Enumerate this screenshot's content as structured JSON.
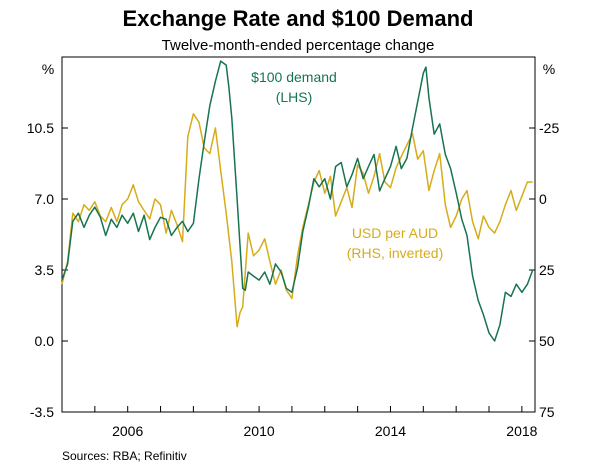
{
  "chart_data": {
    "type": "line",
    "title": "Exchange Rate and $100 Demand",
    "subtitle": "Twelve-month-ended percentage change",
    "left_unit": "%",
    "right_unit": "%",
    "source": "Sources:  RBA; Refinitiv",
    "xlim": [
      2004.0,
      2018.4
    ],
    "x_ticks": [
      2006,
      2010,
      2014,
      2018
    ],
    "y_left": {
      "ylim": [
        -3.5,
        14.0
      ],
      "ticks": [
        -3.5,
        0.0,
        3.5,
        7.0,
        10.5
      ],
      "tick_labels": [
        "-3.5",
        "0.0",
        "3.5",
        "7.0",
        "10.5"
      ]
    },
    "y_right": {
      "ylim": [
        75,
        -50
      ],
      "inverted": true,
      "ticks": [
        -25,
        0,
        25,
        50,
        75
      ],
      "tick_labels": [
        "-25",
        "0",
        "25",
        "50",
        "75"
      ]
    },
    "grid": false,
    "series": [
      {
        "name": "$100 demand",
        "annotation": [
          "$100 demand",
          "(LHS)"
        ],
        "axis": "left",
        "color": "#17744f",
        "x": [
          2004.0,
          2004.17,
          2004.33,
          2004.5,
          2004.67,
          2004.83,
          2005.0,
          2005.17,
          2005.33,
          2005.5,
          2005.67,
          2005.83,
          2006.0,
          2006.17,
          2006.33,
          2006.5,
          2006.67,
          2006.83,
          2007.0,
          2007.17,
          2007.33,
          2007.5,
          2007.67,
          2007.83,
          2008.0,
          2008.17,
          2008.33,
          2008.5,
          2008.67,
          2008.83,
          2009.0,
          2009.08,
          2009.17,
          2009.33,
          2009.5,
          2009.58,
          2009.67,
          2009.83,
          2010.0,
          2010.17,
          2010.33,
          2010.5,
          2010.67,
          2010.83,
          2011.0,
          2011.17,
          2011.33,
          2011.5,
          2011.67,
          2011.83,
          2012.0,
          2012.17,
          2012.33,
          2012.5,
          2012.67,
          2012.83,
          2013.0,
          2013.17,
          2013.33,
          2013.5,
          2013.67,
          2013.83,
          2014.0,
          2014.17,
          2014.33,
          2014.5,
          2014.67,
          2014.83,
          2015.0,
          2015.08,
          2015.17,
          2015.33,
          2015.5,
          2015.67,
          2015.83,
          2016.0,
          2016.17,
          2016.33,
          2016.5,
          2016.67,
          2016.83,
          2017.0,
          2017.17,
          2017.33,
          2017.5,
          2017.67,
          2017.83,
          2018.0,
          2018.17,
          2018.33
        ],
        "values": [
          3.0,
          3.8,
          5.9,
          6.3,
          5.6,
          6.2,
          6.6,
          6.1,
          5.2,
          6.0,
          5.6,
          6.2,
          5.8,
          6.3,
          5.4,
          6.2,
          5.0,
          5.6,
          6.1,
          6.0,
          5.2,
          5.6,
          5.9,
          5.4,
          5.8,
          8.0,
          9.8,
          11.6,
          12.8,
          13.8,
          13.6,
          12.5,
          11.0,
          7.0,
          2.6,
          2.5,
          3.4,
          3.2,
          3.0,
          3.4,
          2.8,
          3.8,
          3.4,
          2.6,
          2.4,
          3.6,
          5.4,
          6.6,
          8.0,
          7.6,
          8.0,
          7.0,
          8.6,
          8.8,
          7.6,
          8.2,
          9.0,
          8.0,
          8.6,
          9.2,
          7.4,
          8.0,
          8.6,
          9.6,
          8.5,
          9.0,
          10.5,
          11.8,
          13.2,
          13.5,
          12.0,
          10.2,
          10.7,
          9.2,
          8.5,
          7.3,
          6.0,
          5.2,
          3.2,
          2.0,
          1.3,
          0.4,
          0.0,
          0.8,
          2.4,
          2.2,
          2.8,
          2.4,
          2.8,
          3.5
        ]
      },
      {
        "name": "USD per AUD",
        "annotation": [
          "USD per AUD",
          "(RHS, inverted)"
        ],
        "axis": "right",
        "color": "#d6ac1a",
        "x": [
          2004.0,
          2004.17,
          2004.33,
          2004.5,
          2004.67,
          2004.83,
          2005.0,
          2005.17,
          2005.33,
          2005.5,
          2005.67,
          2005.83,
          2006.0,
          2006.17,
          2006.33,
          2006.5,
          2006.67,
          2006.83,
          2007.0,
          2007.17,
          2007.33,
          2007.5,
          2007.67,
          2007.83,
          2008.0,
          2008.17,
          2008.33,
          2008.5,
          2008.67,
          2008.83,
          2009.0,
          2009.17,
          2009.33,
          2009.42,
          2009.5,
          2009.67,
          2009.83,
          2010.0,
          2010.17,
          2010.33,
          2010.5,
          2010.67,
          2010.83,
          2011.0,
          2011.17,
          2011.33,
          2011.5,
          2011.67,
          2011.83,
          2012.0,
          2012.17,
          2012.33,
          2012.5,
          2012.67,
          2012.83,
          2013.0,
          2013.17,
          2013.33,
          2013.5,
          2013.67,
          2013.83,
          2014.0,
          2014.17,
          2014.33,
          2014.5,
          2014.67,
          2014.83,
          2015.0,
          2015.17,
          2015.33,
          2015.5,
          2015.67,
          2015.83,
          2016.0,
          2016.17,
          2016.33,
          2016.5,
          2016.67,
          2016.83,
          2017.0,
          2017.17,
          2017.33,
          2017.5,
          2017.67,
          2017.83,
          2018.0,
          2018.17,
          2018.33
        ],
        "values": [
          30,
          22,
          5,
          8,
          2,
          4,
          1,
          6,
          8,
          3,
          8,
          2,
          0,
          -5,
          1,
          4,
          7,
          0,
          2,
          12,
          4,
          9,
          15,
          -22,
          -30,
          -27,
          -18,
          -16,
          -25,
          -10,
          5,
          22,
          45,
          40,
          38,
          12,
          20,
          18,
          14,
          22,
          30,
          25,
          32,
          35,
          20,
          10,
          2,
          -6,
          -10,
          -2,
          -8,
          6,
          1,
          -4,
          3,
          -12,
          -9,
          -2,
          -8,
          -16,
          -6,
          -4,
          -11,
          -15,
          -19,
          -23,
          -14,
          -17,
          -3,
          -10,
          -16,
          2,
          10,
          6,
          0,
          -3,
          8,
          14,
          6,
          10,
          12,
          8,
          2,
          -3,
          4,
          -1,
          -6,
          -6
        ]
      }
    ]
  }
}
